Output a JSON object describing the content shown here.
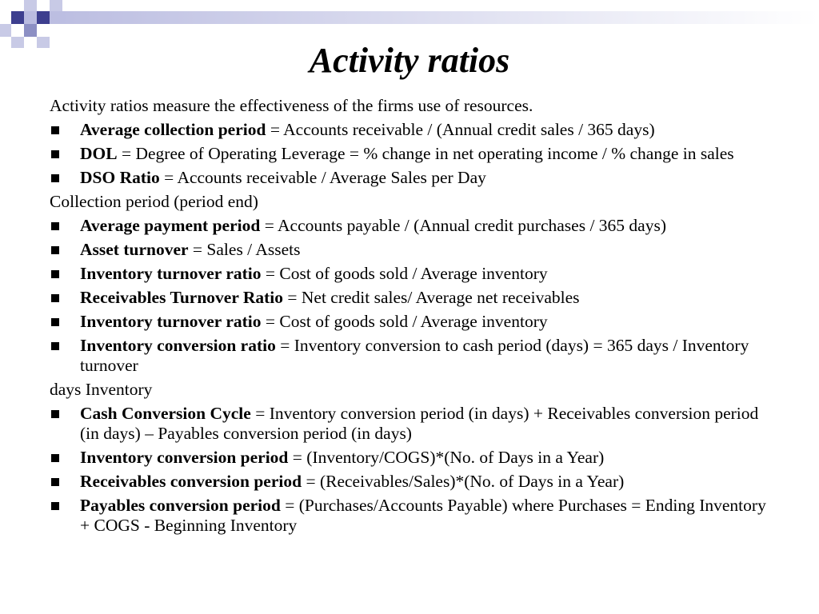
{
  "slide": {
    "title": "Activity ratios",
    "intro": "Activity  ratios measure the effectiveness of the firms use of resources.",
    "group1": [
      {
        "term": "Average collection period",
        "definition": " = Accounts receivable / (Annual credit sales / 365 days)"
      },
      {
        "term": "DOL",
        "definition": " = Degree of Operating Leverage = % change in net operating income /  % change in sales"
      },
      {
        "term": "DSO Ratio",
        "definition": " = Accounts receivable / Average Sales per Day"
      }
    ],
    "note1": "Collection period (period end)",
    "group2": [
      {
        "term": "Average payment period",
        "definition": " = Accounts payable / (Annual credit purchases / 365 days)"
      },
      {
        "term": "Asset turnover",
        "definition": " = Sales / Assets"
      },
      {
        "term": "Inventory turnover ratio",
        "definition": " = Cost of goods sold / Average inventory"
      },
      {
        "term": "Receivables Turnover Ratio",
        "definition": " = Net credit sales/ Average net receivables"
      },
      {
        "term": "Inventory turnover ratio",
        "definition": " = Cost of goods sold / Average inventory"
      },
      {
        "term": "Inventory conversion ratio",
        "definition": " = Inventory conversion to cash period (days) = 365 days / Inventory turnover"
      }
    ],
    "note2": "days Inventory",
    "group3": [
      {
        "term": "Cash Conversion Cycle",
        "definition": " = Inventory conversion period (in days) + Receivables conversion period (in days) – Payables conversion period (in days)"
      },
      {
        "term": "Inventory conversion period",
        "definition": " = (Inventory/COGS)*(No. of Days in a Year)"
      },
      {
        "term": "Receivables conversion period",
        "definition": " = (Receivables/Sales)*(No. of Days in a Year)"
      },
      {
        "term": "Payables conversion period",
        "definition": " = (Purchases/Accounts Payable) where Purchases = Ending Inventory + COGS  - Beginning Inventory"
      }
    ]
  },
  "colors": {
    "decor_dark": "#3d3f8f",
    "decor_mid": "#8c8fc4",
    "decor_light": "#c8cae6",
    "bar_start": "#b9bbe0",
    "bar_end": "#ffffff"
  }
}
